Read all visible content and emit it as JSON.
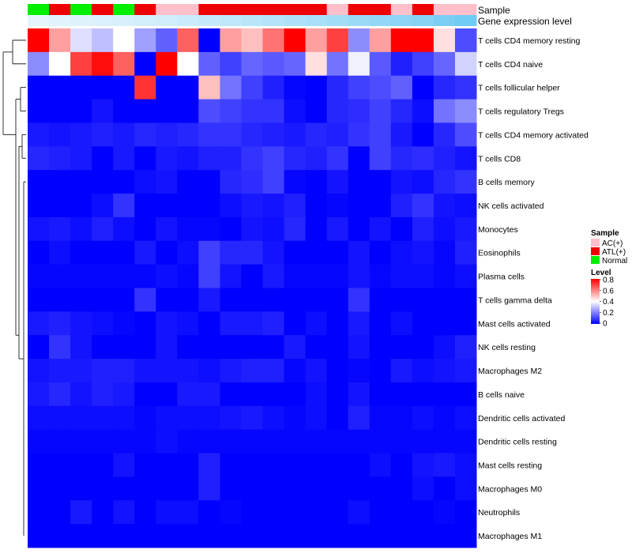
{
  "chart_data": {
    "type": "heatmap",
    "title": "",
    "annotation_rows": [
      {
        "name": "Sample",
        "key": "sample"
      },
      {
        "name": "Gene expression level",
        "key": "expression"
      }
    ],
    "columns": [
      {
        "sample": "Normal",
        "expression": 0.03
      },
      {
        "sample": "ATL(+)",
        "expression": 0.05
      },
      {
        "sample": "Normal",
        "expression": 0.07
      },
      {
        "sample": "ATL(+)",
        "expression": 0.1
      },
      {
        "sample": "Normal",
        "expression": 0.12
      },
      {
        "sample": "ATL(+)",
        "expression": 0.15
      },
      {
        "sample": "AC(+)",
        "expression": 0.18
      },
      {
        "sample": "AC(+)",
        "expression": 0.21
      },
      {
        "sample": "ATL(+)",
        "expression": 0.25
      },
      {
        "sample": "ATL(+)",
        "expression": 0.29
      },
      {
        "sample": "ATL(+)",
        "expression": 0.33
      },
      {
        "sample": "ATL(+)",
        "expression": 0.37
      },
      {
        "sample": "ATL(+)",
        "expression": 0.41
      },
      {
        "sample": "ATL(+)",
        "expression": 0.45
      },
      {
        "sample": "AC(+)",
        "expression": 0.5
      },
      {
        "sample": "ATL(+)",
        "expression": 0.55
      },
      {
        "sample": "ATL(+)",
        "expression": 0.6
      },
      {
        "sample": "AC(+)",
        "expression": 0.65
      },
      {
        "sample": "ATL(+)",
        "expression": 0.7
      },
      {
        "sample": "AC(+)",
        "expression": 0.78
      },
      {
        "sample": "AC(+)",
        "expression": 0.85
      }
    ],
    "rows": [
      "T cells CD4 memory resting",
      "T cells CD4 naive",
      "T cells follicular helper",
      "T cells regulatory  Tregs",
      "T cells CD4 memory activated",
      "T cells CD8",
      "B cells memory",
      "NK cells activated",
      "Monocytes",
      "Eosinophils",
      "Plasma cells",
      "T cells gamma delta",
      "Mast cells activated",
      "NK cells resting",
      "Macrophages M2",
      "B cells naive",
      "Dendritic cells activated",
      "Dendritic cells resting",
      "Mast cells resting",
      "Macrophages M0",
      "Neutrophils",
      "Macrophages M1"
    ],
    "values": [
      [
        0.8,
        0.55,
        0.35,
        0.3,
        0.4,
        0.25,
        0.15,
        0.65,
        0.0,
        0.55,
        0.5,
        0.62,
        0.8,
        0.55,
        0.7,
        0.22,
        0.55,
        0.8,
        0.8,
        0.45,
        0.12
      ],
      [
        0.22,
        0.4,
        0.7,
        0.78,
        0.65,
        0.0,
        0.8,
        0.4,
        0.15,
        0.1,
        0.16,
        0.14,
        0.16,
        0.45,
        0.18,
        0.38,
        0.14,
        0.05,
        0.1,
        0.16,
        0.33
      ],
      [
        0.0,
        0.0,
        0.0,
        0.0,
        0.0,
        0.72,
        0.0,
        0.0,
        0.5,
        0.18,
        0.1,
        0.05,
        0.01,
        0.0,
        0.06,
        0.1,
        0.12,
        0.15,
        0.0,
        0.06,
        0.08
      ],
      [
        0.0,
        0.0,
        0.0,
        0.03,
        0.0,
        0.0,
        0.0,
        0.0,
        0.12,
        0.1,
        0.08,
        0.08,
        0.02,
        0.0,
        0.06,
        0.07,
        0.1,
        0.06,
        0.02,
        0.18,
        0.22
      ],
      [
        0.04,
        0.03,
        0.04,
        0.05,
        0.04,
        0.06,
        0.05,
        0.06,
        0.08,
        0.08,
        0.06,
        0.05,
        0.04,
        0.06,
        0.05,
        0.08,
        0.1,
        0.04,
        0.0,
        0.06,
        0.12
      ],
      [
        0.06,
        0.05,
        0.04,
        0.0,
        0.04,
        0.0,
        0.04,
        0.03,
        0.05,
        0.05,
        0.08,
        0.1,
        0.06,
        0.05,
        0.08,
        0.0,
        0.1,
        0.06,
        0.07,
        0.05,
        0.03
      ],
      [
        0.0,
        0.0,
        0.0,
        0.0,
        0.0,
        0.02,
        0.03,
        0.0,
        0.0,
        0.06,
        0.07,
        0.1,
        0.01,
        0.0,
        0.03,
        0.0,
        0.0,
        0.03,
        0.02,
        0.06,
        0.08
      ],
      [
        0.0,
        0.0,
        0.0,
        0.02,
        0.08,
        0.0,
        0.0,
        0.0,
        0.0,
        0.02,
        0.04,
        0.03,
        0.05,
        0.0,
        0.01,
        0.0,
        0.0,
        0.05,
        0.08,
        0.03,
        0.02
      ],
      [
        0.03,
        0.04,
        0.02,
        0.05,
        0.02,
        0.0,
        0.03,
        0.01,
        0.01,
        0.0,
        0.03,
        0.02,
        0.06,
        0.0,
        0.04,
        0.0,
        0.03,
        0.0,
        0.05,
        0.02,
        0.04
      ],
      [
        0.0,
        0.02,
        0.0,
        0.0,
        0.0,
        0.04,
        0.0,
        0.02,
        0.1,
        0.06,
        0.06,
        0.03,
        0.0,
        0.0,
        0.0,
        0.03,
        0.0,
        0.02,
        0.03,
        0.01,
        0.05
      ],
      [
        0.01,
        0.01,
        0.01,
        0.01,
        0.01,
        0.01,
        0.02,
        0.01,
        0.1,
        0.03,
        0.0,
        0.04,
        0.01,
        0.01,
        0.01,
        0.03,
        0.01,
        0.02,
        0.02,
        0.01,
        0.02
      ],
      [
        0.0,
        0.0,
        0.0,
        0.0,
        0.0,
        0.08,
        0.0,
        0.0,
        0.04,
        0.0,
        0.0,
        0.0,
        0.0,
        0.0,
        0.0,
        0.08,
        0.0,
        0.0,
        0.0,
        0.0,
        0.0
      ],
      [
        0.04,
        0.05,
        0.03,
        0.02,
        0.01,
        0.0,
        0.03,
        0.02,
        0.0,
        0.04,
        0.04,
        0.05,
        0.0,
        0.02,
        0.0,
        0.04,
        0.0,
        0.02,
        0.0,
        0.0,
        0.0
      ],
      [
        0.0,
        0.08,
        0.03,
        0.0,
        0.0,
        0.0,
        0.03,
        0.0,
        0.0,
        0.0,
        0.0,
        0.0,
        0.04,
        0.0,
        0.0,
        0.03,
        0.0,
        0.0,
        0.0,
        0.02,
        0.05
      ],
      [
        0.03,
        0.04,
        0.04,
        0.05,
        0.05,
        0.03,
        0.03,
        0.03,
        0.02,
        0.04,
        0.05,
        0.05,
        0.01,
        0.03,
        0.0,
        0.01,
        0.0,
        0.04,
        0.02,
        0.03,
        0.04
      ],
      [
        0.04,
        0.06,
        0.03,
        0.05,
        0.04,
        0.0,
        0.0,
        0.04,
        0.04,
        0.0,
        0.0,
        0.0,
        0.0,
        0.02,
        0.0,
        0.03,
        0.0,
        0.0,
        0.0,
        0.0,
        0.0
      ],
      [
        0.02,
        0.02,
        0.02,
        0.02,
        0.02,
        0.01,
        0.02,
        0.02,
        0.02,
        0.03,
        0.04,
        0.02,
        0.01,
        0.02,
        0.0,
        0.05,
        0.01,
        0.01,
        0.02,
        0.01,
        0.02
      ],
      [
        0.01,
        0.01,
        0.01,
        0.01,
        0.01,
        0.01,
        0.02,
        0.01,
        0.01,
        0.01,
        0.01,
        0.01,
        0.01,
        0.01,
        0.01,
        0.01,
        0.01,
        0.01,
        0.01,
        0.01,
        0.01
      ],
      [
        0.0,
        0.0,
        0.0,
        0.0,
        0.03,
        0.0,
        0.0,
        0.0,
        0.05,
        0.0,
        0.0,
        0.0,
        0.0,
        0.0,
        0.0,
        0.0,
        0.02,
        0.0,
        0.03,
        0.04,
        0.02
      ],
      [
        0.0,
        0.0,
        0.0,
        0.0,
        0.0,
        0.0,
        0.0,
        0.0,
        0.05,
        0.0,
        0.0,
        0.0,
        0.0,
        0.0,
        0.0,
        0.0,
        0.0,
        0.0,
        0.02,
        0.0,
        0.02
      ],
      [
        0.0,
        0.0,
        0.04,
        0.0,
        0.03,
        0.0,
        0.02,
        0.02,
        0.0,
        0.01,
        0.0,
        0.0,
        0.0,
        0.0,
        0.0,
        0.02,
        0.0,
        0.0,
        0.0,
        0.01,
        0.0
      ],
      [
        0.0,
        0.0,
        0.0,
        0.0,
        0.0,
        0.0,
        0.0,
        0.0,
        0.0,
        0.0,
        0.0,
        0.0,
        0.0,
        0.0,
        0.0,
        0.0,
        0.0,
        0.0,
        0.0,
        0.0,
        0.0
      ]
    ],
    "legend": {
      "sample_title": "Sample",
      "sample_levels": [
        {
          "label": "AC(+)",
          "color": "#ffc0cb"
        },
        {
          "label": "ATL(+)",
          "color": "#ee0000"
        },
        {
          "label": "Normal",
          "color": "#00ee00"
        }
      ],
      "level_title": "Level",
      "level_ticks": [
        0.8,
        0.6,
        0.4,
        0.2,
        0
      ],
      "range": [
        0,
        0.8
      ],
      "color_low": "#0000ff",
      "color_mid": "#ffffff",
      "color_high": "#ff0000",
      "expression_color_low": "#e8f6fd",
      "expression_color_high": "#5bc3f2"
    },
    "row_dendrogram": true
  }
}
